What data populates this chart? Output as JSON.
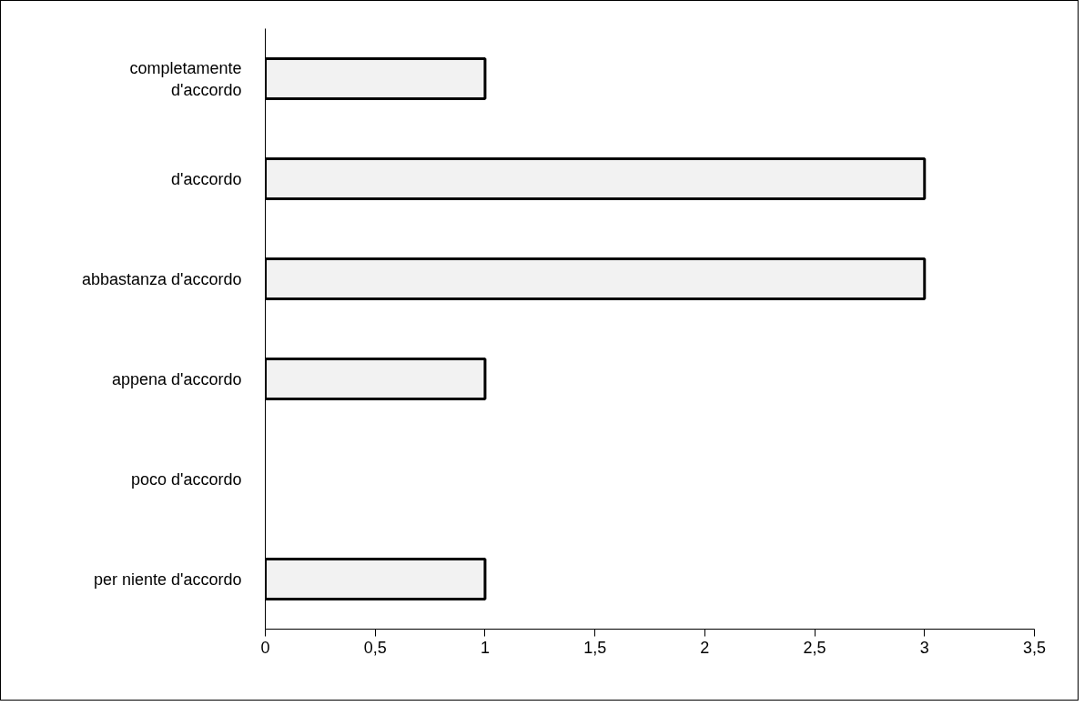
{
  "chart_data": {
    "type": "bar",
    "orientation": "horizontal",
    "categories": [
      "completamente d'accordo",
      "d'accordo",
      "abbastanza d'accordo",
      "appena d'accordo",
      "poco d'accordo",
      "per niente d'accordo"
    ],
    "values": [
      1,
      3,
      3,
      1,
      0,
      1
    ],
    "color": "#f2f2f2",
    "xlim": [
      0,
      3.5
    ],
    "xticks": [
      0,
      {
        "value": 0.5,
        "label": "0,5"
      },
      1,
      {
        "value": 1.5,
        "label": "1,5"
      },
      2,
      {
        "value": 2.5,
        "label": "2,5"
      },
      3,
      {
        "value": 3.5,
        "label": "3,5"
      }
    ],
    "grid": false
  }
}
